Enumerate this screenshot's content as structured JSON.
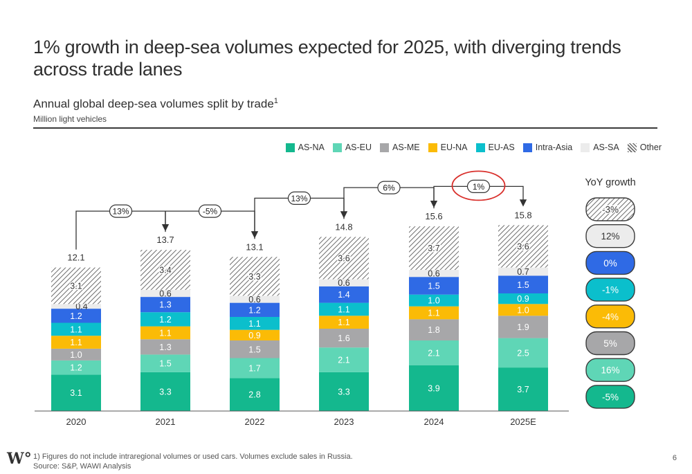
{
  "title": "1% growth in deep-sea volumes expected for 2025, with diverging trends across trade lanes",
  "subtitle": "Annual global deep-sea volumes split by trade",
  "subtitle_sup": "1",
  "unit": "Million light vehicles",
  "footnote": "1) Figures do not include intraregional volumes or used cars. Volumes exclude sales in Russia.",
  "source": "Source: S&P, WAWI Analysis",
  "page_number": "6",
  "logo": "W°",
  "colors": {
    "AS-NA": "#14b88e",
    "AS-EU": "#5fd6b6",
    "AS-ME": "#a7a7a9",
    "EU-NA": "#fbbb06",
    "EU-AS": "#0bbfcc",
    "Intra-Asia": "#2f6ae5",
    "AS-SA": "#ececec",
    "Other": "hatch"
  },
  "chart_data": {
    "type": "bar",
    "stacked": true,
    "categories": [
      "2020",
      "2021",
      "2022",
      "2023",
      "2024",
      "2025E"
    ],
    "series": [
      {
        "name": "AS-NA",
        "values": [
          3.1,
          3.3,
          2.8,
          3.3,
          3.9,
          3.7
        ]
      },
      {
        "name": "AS-EU",
        "values": [
          1.2,
          1.5,
          1.7,
          2.1,
          2.1,
          2.5
        ]
      },
      {
        "name": "AS-ME",
        "values": [
          1.0,
          1.3,
          1.5,
          1.6,
          1.8,
          1.9
        ]
      },
      {
        "name": "EU-NA",
        "values": [
          1.1,
          1.1,
          0.9,
          1.1,
          1.1,
          1.0
        ]
      },
      {
        "name": "EU-AS",
        "values": [
          1.1,
          1.2,
          1.1,
          1.1,
          1.0,
          0.9
        ]
      },
      {
        "name": "Intra-Asia",
        "values": [
          1.2,
          1.3,
          1.2,
          1.4,
          1.5,
          1.5
        ]
      },
      {
        "name": "AS-SA",
        "values": [
          0.4,
          0.6,
          0.6,
          0.6,
          0.6,
          0.7
        ]
      },
      {
        "name": "Other",
        "values": [
          3.1,
          3.4,
          3.3,
          3.6,
          3.7,
          3.6
        ]
      }
    ],
    "totals": [
      "12.1",
      "13.7",
      "13.1",
      "14.8",
      "15.6",
      "15.8"
    ],
    "growth_arrows": [
      "13%",
      "-5%",
      "13%",
      "6%",
      "1%"
    ],
    "highlight_growth": "1%",
    "legend_position": "top-right",
    "yoy_panel": {
      "title": "YoY growth",
      "items": [
        {
          "series": "Other",
          "value": "-3%"
        },
        {
          "series": "AS-SA",
          "value": "12%"
        },
        {
          "series": "Intra-Asia",
          "value": "0%"
        },
        {
          "series": "EU-AS",
          "value": "-1%"
        },
        {
          "series": "EU-NA",
          "value": "-4%"
        },
        {
          "series": "AS-ME",
          "value": "5%"
        },
        {
          "series": "AS-EU",
          "value": "16%"
        },
        {
          "series": "AS-NA",
          "value": "-5%"
        }
      ]
    }
  }
}
